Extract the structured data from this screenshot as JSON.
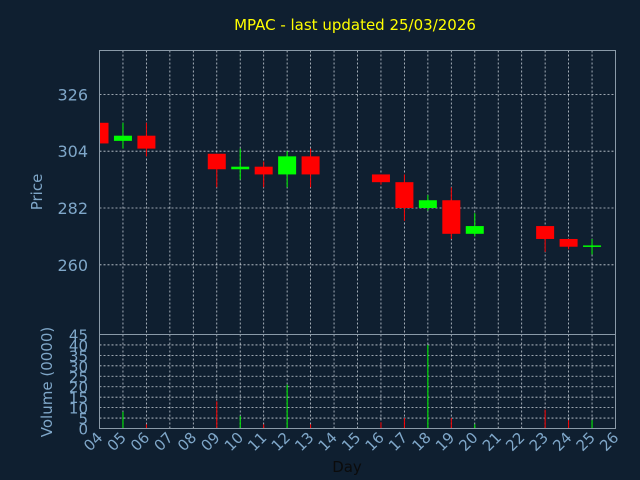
{
  "chart_data": {
    "type": "candlestick",
    "title": "MPAC - last updated 25/03/2026",
    "xlabel": "Day",
    "price_panel": {
      "ylabel": "Price",
      "ylim": [
        233,
        343
      ],
      "yticks": [
        260,
        282,
        304,
        326
      ],
      "grid": true
    },
    "volume_panel": {
      "ylabel": "Volume (0000)",
      "ylim": [
        0,
        45
      ],
      "yticks": [
        0,
        5,
        10,
        15,
        20,
        25,
        30,
        35,
        40,
        45
      ],
      "grid": true
    },
    "xlim": [
      4,
      26
    ],
    "x_ticks": [
      "04",
      "05",
      "06",
      "07",
      "08",
      "09",
      "10",
      "11",
      "12",
      "13",
      "14",
      "15",
      "16",
      "17",
      "18",
      "19",
      "20",
      "21",
      "22",
      "23",
      "24",
      "25",
      "26"
    ],
    "colors": {
      "up": "#00ff00",
      "down": "#ff0000",
      "background": "#0f1f30",
      "text": "#7fa7c9",
      "title": "#ffff00"
    },
    "candles": [
      {
        "day": 4,
        "open": 315,
        "high": 315,
        "low": 307,
        "close": 307,
        "volume": 0
      },
      {
        "day": 5,
        "open": 308,
        "high": 315,
        "low": 305,
        "close": 310,
        "volume": 8
      },
      {
        "day": 6,
        "open": 310,
        "high": 315,
        "low": 302,
        "close": 305,
        "volume": 2
      },
      {
        "day": 9,
        "open": 303,
        "high": 303,
        "low": 290,
        "close": 297,
        "volume": 13
      },
      {
        "day": 10,
        "open": 297,
        "high": 305,
        "low": 293,
        "close": 298,
        "volume": 6
      },
      {
        "day": 11,
        "open": 298,
        "high": 300,
        "low": 290,
        "close": 295,
        "volume": 2
      },
      {
        "day": 12,
        "open": 295,
        "high": 304,
        "low": 290,
        "close": 302,
        "volume": 21
      },
      {
        "day": 13,
        "open": 302,
        "high": 305,
        "low": 290,
        "close": 295,
        "volume": 2
      },
      {
        "day": 16,
        "open": 295,
        "high": 295,
        "low": 291,
        "close": 292,
        "volume": 3
      },
      {
        "day": 17,
        "open": 292,
        "high": 295,
        "low": 277,
        "close": 282,
        "volume": 5
      },
      {
        "day": 18,
        "open": 282,
        "high": 287,
        "low": 281,
        "close": 285,
        "volume": 40
      },
      {
        "day": 19,
        "open": 285,
        "high": 290,
        "low": 270,
        "close": 272,
        "volume": 5
      },
      {
        "day": 20,
        "open": 272,
        "high": 280,
        "low": 271,
        "close": 275,
        "volume": 2
      },
      {
        "day": 23,
        "open": 275,
        "high": 275,
        "low": 265,
        "close": 270,
        "volume": 9
      },
      {
        "day": 24,
        "open": 270,
        "high": 270,
        "low": 266,
        "close": 267,
        "volume": 4
      },
      {
        "day": 25,
        "open": 267,
        "high": 270,
        "low": 264,
        "close": 267.5,
        "volume": 4
      }
    ]
  }
}
